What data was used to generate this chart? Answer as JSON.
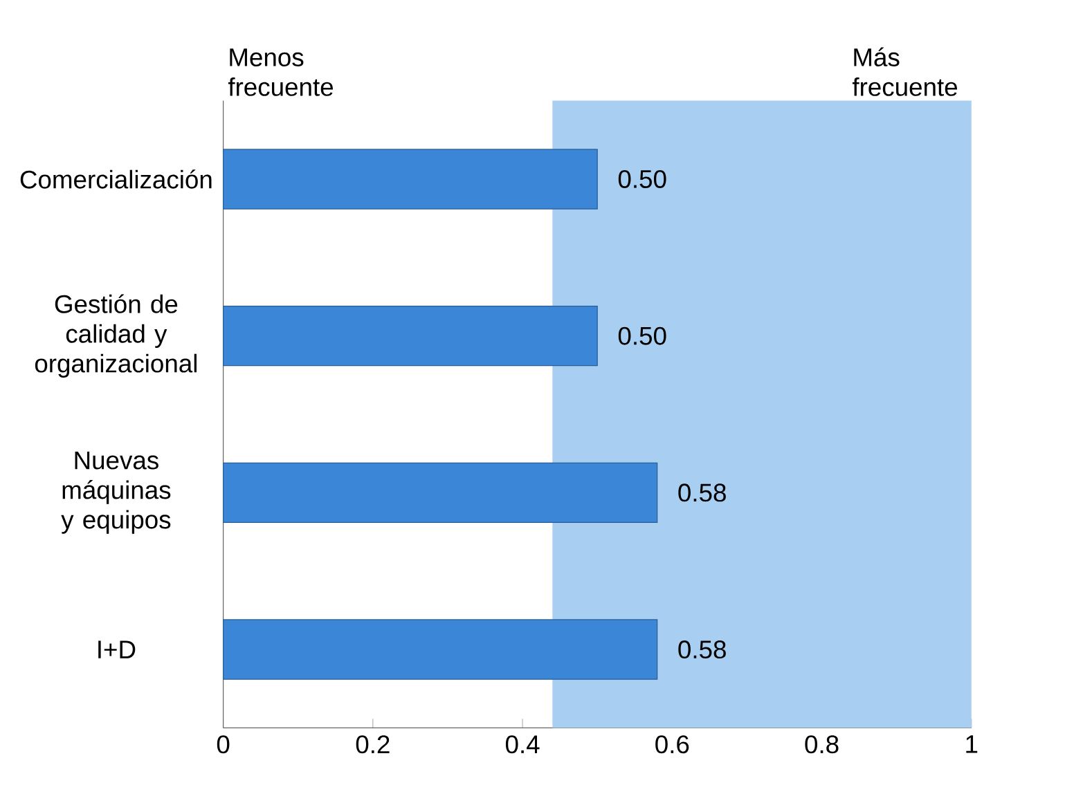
{
  "chart_data": {
    "type": "bar",
    "orientation": "horizontal",
    "categories": [
      "Comercialización",
      "Gestión de calidad y organizacional",
      "Nuevas máquinas y equipos",
      "I+D"
    ],
    "values": [
      0.5,
      0.5,
      0.58,
      0.58
    ],
    "value_labels": [
      "0.50",
      "0.50",
      "0.58",
      "0.58"
    ],
    "color": "#3b86d6",
    "xlim": [
      0,
      1
    ],
    "xticks": [
      0,
      0.2,
      0.4,
      0.6,
      0.8,
      1
    ],
    "bands": [
      {
        "axis": "x",
        "from": 0.44,
        "to": 1,
        "color": "#a8cff2"
      }
    ],
    "annotations": [
      "Menos frecuente",
      "Más frecuente"
    ],
    "grid": false
  }
}
